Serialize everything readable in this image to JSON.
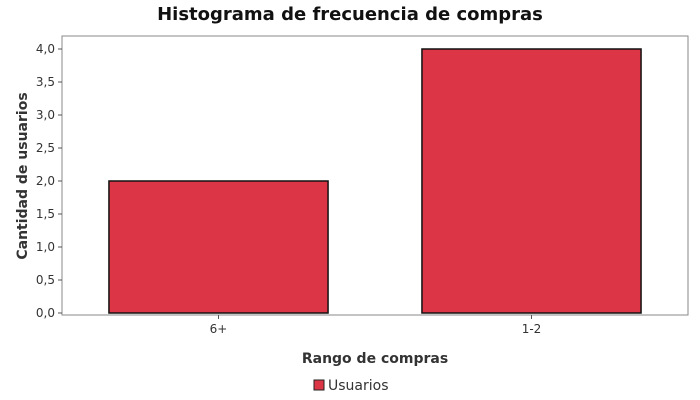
{
  "chart_data": {
    "type": "bar",
    "title": "Histograma de frecuencia de compras",
    "xlabel": "Rango de compras",
    "ylabel": "Cantidad de usuarios",
    "categories": [
      "6+",
      "1-2"
    ],
    "series": [
      {
        "name": "Usuarios",
        "values": [
          2,
          4
        ],
        "color": "#dc3545"
      }
    ],
    "ylim": [
      0,
      4
    ],
    "yticks": [
      "0,0",
      "0,5",
      "1,0",
      "1,5",
      "2,0",
      "2,5",
      "3,0",
      "3,5",
      "4,0"
    ],
    "grid": false,
    "legend_position": "bottom"
  }
}
